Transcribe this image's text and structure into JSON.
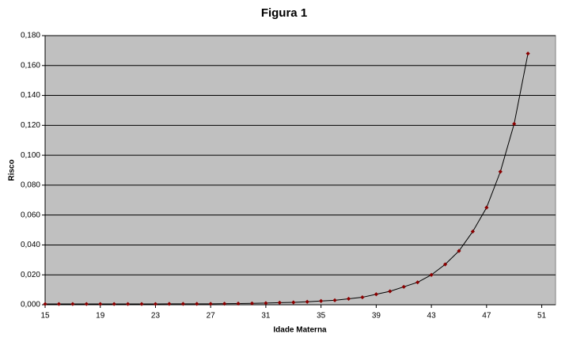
{
  "chart_data": {
    "type": "line",
    "title": "Figura 1",
    "x_label": "Idade Materna",
    "y_label": "Risco",
    "x": [
      15,
      16,
      17,
      18,
      19,
      20,
      21,
      22,
      23,
      24,
      25,
      26,
      27,
      28,
      29,
      30,
      31,
      32,
      33,
      34,
      35,
      36,
      37,
      38,
      39,
      40,
      41,
      42,
      43,
      44,
      45,
      46,
      47,
      48,
      49,
      50
    ],
    "values": [
      0.0005,
      0.0005,
      0.0005,
      0.0005,
      0.0005,
      0.0005,
      0.0005,
      0.0005,
      0.0005,
      0.0006,
      0.0006,
      0.0006,
      0.0006,
      0.0007,
      0.0008,
      0.0009,
      0.0011,
      0.0014,
      0.0016,
      0.002,
      0.0025,
      0.003,
      0.004,
      0.005,
      0.007,
      0.009,
      0.012,
      0.015,
      0.02,
      0.027,
      0.036,
      0.049,
      0.065,
      0.089,
      0.121,
      0.168
    ],
    "line_color": "#000000",
    "marker_color": "#8b0000",
    "plot_background": "#c0c0c0",
    "grid": true,
    "xlim": [
      15,
      52
    ],
    "xticks": [
      15,
      19,
      23,
      27,
      31,
      35,
      39,
      43,
      47,
      51
    ],
    "ylim": [
      0,
      0.18
    ],
    "yticks": [
      {
        "value": 0,
        "label": "0,000"
      },
      {
        "value": 0.02,
        "label": "0,020"
      },
      {
        "value": 0.04,
        "label": "0,040"
      },
      {
        "value": 0.06,
        "label": "0,060"
      },
      {
        "value": 0.08,
        "label": "0,080"
      },
      {
        "value": 0.1,
        "label": "0,100"
      },
      {
        "value": 0.12,
        "label": "0,120"
      },
      {
        "value": 0.14,
        "label": "0,140"
      },
      {
        "value": 0.16,
        "label": "0,160"
      },
      {
        "value": 0.18,
        "label": "0,180"
      }
    ]
  }
}
